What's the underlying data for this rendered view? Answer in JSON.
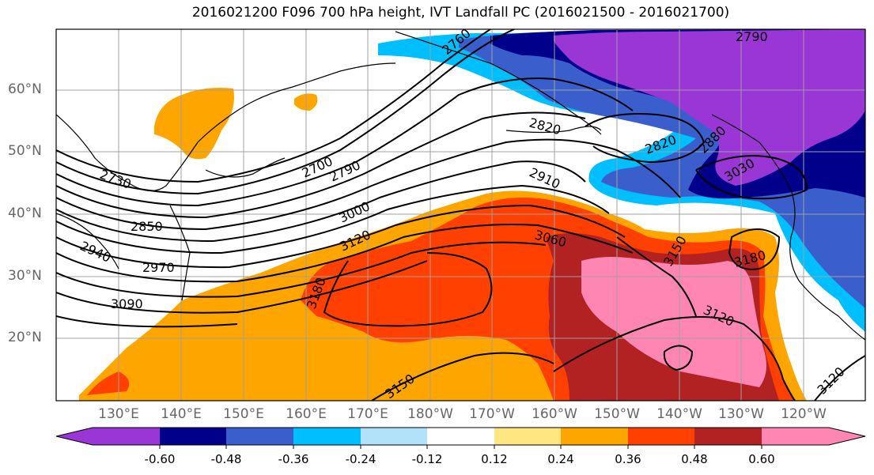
{
  "title": "2016021200 F096 700 hPa height, IVT Landfall PC (2016021500 - 2016021700)",
  "lat_labels": [
    "60°N",
    "50°N",
    "40°N",
    "30°N",
    "20°N"
  ],
  "lon_labels": [
    "130°E",
    "140°E",
    "150°E",
    "160°E",
    "170°E",
    "180°W",
    "170°W",
    "160°W",
    "150°W",
    "140°W",
    "130°W",
    "120°W"
  ],
  "contour_labels": [
    "2760",
    "2790",
    "2820",
    "2820",
    "2880",
    "3030",
    "2730",
    "2700",
    "2790",
    "2910",
    "2850",
    "3000",
    "3060",
    "2940",
    "3120",
    "3150",
    "2970",
    "3180",
    "3180",
    "3090",
    "3120",
    "3150",
    "3120"
  ],
  "colorbar": {
    "ticks": [
      "-0.60",
      "-0.48",
      "-0.36",
      "-0.24",
      "-0.12",
      "0.12",
      "0.24",
      "0.36",
      "0.48",
      "0.60"
    ],
    "colors": [
      "#9a35d6",
      "#00008b",
      "#3a5fcd",
      "#00bfff",
      "#b2e2fa",
      "#ffffff",
      "#ffe680",
      "#ffa500",
      "#ff4000",
      "#b22222",
      "#ff85b3",
      "#ff85b3"
    ]
  }
}
